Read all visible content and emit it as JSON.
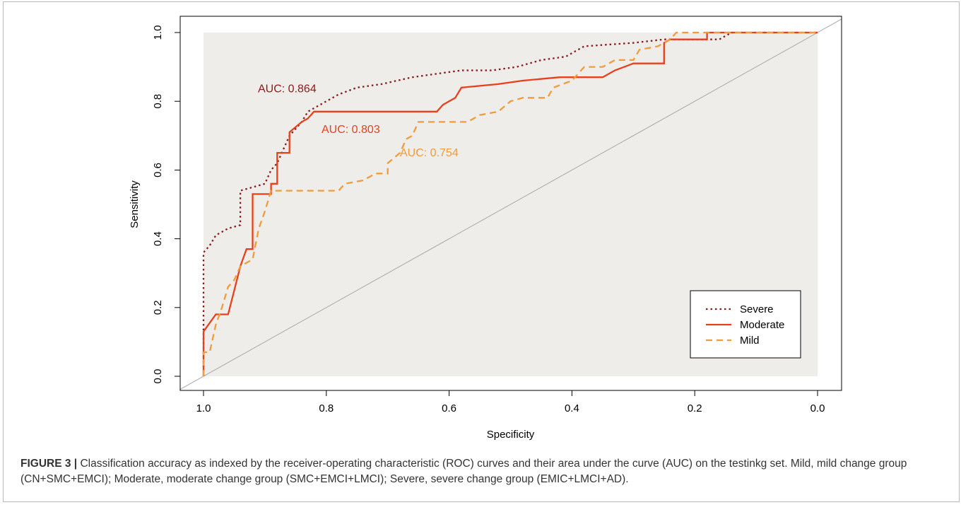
{
  "chart_data": {
    "type": "line",
    "xlabel": "Specificity",
    "ylabel": "Sensitivity",
    "xlim": [
      1.0,
      0.0
    ],
    "ylim": [
      0.0,
      1.0
    ],
    "x_ticks": [
      "1.0",
      "0.8",
      "0.6",
      "0.4",
      "0.2",
      "0.0"
    ],
    "y_ticks": [
      "0.0",
      "0.2",
      "0.4",
      "0.6",
      "0.8",
      "1.0"
    ],
    "x_tick_values": [
      1.0,
      0.8,
      0.6,
      0.4,
      0.2,
      0.0
    ],
    "y_tick_values": [
      0.0,
      0.2,
      0.4,
      0.6,
      0.8,
      1.0
    ],
    "x_axis_reversed": true,
    "background_color": "#efedea",
    "diagonal_reference": true,
    "legend_position": "bottom-right",
    "series": [
      {
        "name": "Severe",
        "style": "dotted",
        "color": "#8b1a1a",
        "auc_label": "AUC: 0.864",
        "points": [
          [
            1.0,
            0.0
          ],
          [
            1.0,
            0.36
          ],
          [
            0.99,
            0.38
          ],
          [
            0.98,
            0.41
          ],
          [
            0.96,
            0.43
          ],
          [
            0.94,
            0.44
          ],
          [
            0.94,
            0.54
          ],
          [
            0.9,
            0.56
          ],
          [
            0.89,
            0.6
          ],
          [
            0.88,
            0.62
          ],
          [
            0.87,
            0.66
          ],
          [
            0.86,
            0.7
          ],
          [
            0.84,
            0.74
          ],
          [
            0.83,
            0.77
          ],
          [
            0.8,
            0.8
          ],
          [
            0.78,
            0.82
          ],
          [
            0.75,
            0.84
          ],
          [
            0.71,
            0.85
          ],
          [
            0.66,
            0.87
          ],
          [
            0.62,
            0.88
          ],
          [
            0.58,
            0.89
          ],
          [
            0.53,
            0.89
          ],
          [
            0.49,
            0.9
          ],
          [
            0.45,
            0.92
          ],
          [
            0.41,
            0.93
          ],
          [
            0.38,
            0.96
          ],
          [
            0.3,
            0.97
          ],
          [
            0.25,
            0.98
          ],
          [
            0.2,
            0.98
          ],
          [
            0.16,
            0.98
          ],
          [
            0.14,
            1.0
          ],
          [
            0.0,
            1.0
          ]
        ]
      },
      {
        "name": "Moderate",
        "style": "solid",
        "color": "#e8401c",
        "auc_label": "AUC: 0.803",
        "points": [
          [
            1.0,
            0.0
          ],
          [
            1.0,
            0.13
          ],
          [
            0.98,
            0.18
          ],
          [
            0.96,
            0.18
          ],
          [
            0.95,
            0.25
          ],
          [
            0.94,
            0.32
          ],
          [
            0.93,
            0.37
          ],
          [
            0.92,
            0.37
          ],
          [
            0.92,
            0.53
          ],
          [
            0.89,
            0.53
          ],
          [
            0.89,
            0.56
          ],
          [
            0.88,
            0.56
          ],
          [
            0.88,
            0.65
          ],
          [
            0.86,
            0.65
          ],
          [
            0.86,
            0.71
          ],
          [
            0.84,
            0.74
          ],
          [
            0.83,
            0.75
          ],
          [
            0.82,
            0.77
          ],
          [
            0.62,
            0.77
          ],
          [
            0.61,
            0.79
          ],
          [
            0.59,
            0.81
          ],
          [
            0.58,
            0.84
          ],
          [
            0.52,
            0.85
          ],
          [
            0.48,
            0.86
          ],
          [
            0.42,
            0.87
          ],
          [
            0.35,
            0.87
          ],
          [
            0.33,
            0.89
          ],
          [
            0.3,
            0.91
          ],
          [
            0.25,
            0.91
          ],
          [
            0.25,
            0.97
          ],
          [
            0.24,
            0.98
          ],
          [
            0.18,
            0.98
          ],
          [
            0.18,
            1.0
          ],
          [
            0.0,
            1.0
          ]
        ]
      },
      {
        "name": "Mild",
        "style": "dashed",
        "color": "#f09b3c",
        "auc_label": "AUC: 0.754",
        "points": [
          [
            1.0,
            0.0
          ],
          [
            1.0,
            0.07
          ],
          [
            0.99,
            0.07
          ],
          [
            0.98,
            0.15
          ],
          [
            0.97,
            0.2
          ],
          [
            0.96,
            0.26
          ],
          [
            0.95,
            0.28
          ],
          [
            0.94,
            0.32
          ],
          [
            0.92,
            0.34
          ],
          [
            0.91,
            0.43
          ],
          [
            0.9,
            0.48
          ],
          [
            0.89,
            0.54
          ],
          [
            0.78,
            0.54
          ],
          [
            0.77,
            0.56
          ],
          [
            0.74,
            0.57
          ],
          [
            0.72,
            0.59
          ],
          [
            0.7,
            0.59
          ],
          [
            0.7,
            0.62
          ],
          [
            0.68,
            0.65
          ],
          [
            0.67,
            0.69
          ],
          [
            0.66,
            0.7
          ],
          [
            0.65,
            0.74
          ],
          [
            0.57,
            0.74
          ],
          [
            0.55,
            0.76
          ],
          [
            0.52,
            0.77
          ],
          [
            0.5,
            0.8
          ],
          [
            0.48,
            0.81
          ],
          [
            0.44,
            0.81
          ],
          [
            0.43,
            0.84
          ],
          [
            0.4,
            0.86
          ],
          [
            0.38,
            0.9
          ],
          [
            0.35,
            0.9
          ],
          [
            0.33,
            0.92
          ],
          [
            0.3,
            0.92
          ],
          [
            0.29,
            0.95
          ],
          [
            0.26,
            0.96
          ],
          [
            0.24,
            0.98
          ],
          [
            0.23,
            1.0
          ],
          [
            0.0,
            1.0
          ]
        ]
      }
    ]
  },
  "caption": {
    "label": "FIGURE 3 |",
    "text": " Classification accuracy as indexed by the receiver-operating characteristic (ROC) curves and their area under the curve (AUC) on the testinkg set. Mild, mild change group (CN+SMC+EMCI); Moderate, moderate change group (SMC+EMCI+LMCI); Severe, severe change group (EMIC+LMCI+AD)."
  }
}
